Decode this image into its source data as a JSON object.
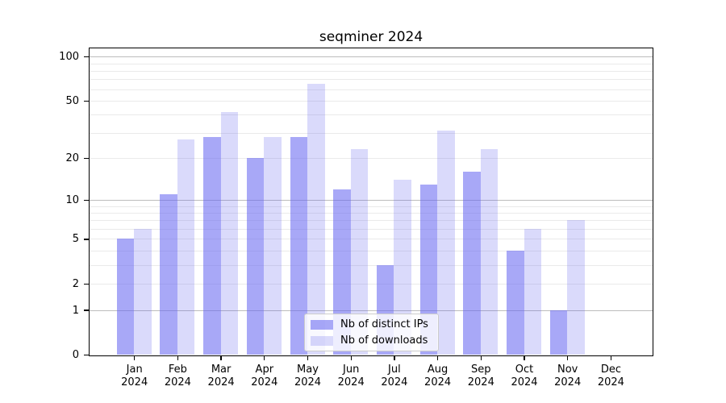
{
  "title": "seqminer 2024",
  "chart_data": {
    "type": "bar",
    "title": "seqminer 2024",
    "categories": [
      "Jan",
      "Feb",
      "Mar",
      "Apr",
      "May",
      "Jun",
      "Jul",
      "Aug",
      "Sep",
      "Oct",
      "Nov",
      "Dec"
    ],
    "x_year_label": "2024",
    "series": [
      {
        "name": "Nb of distinct IPs",
        "color": "#A8A8F7",
        "base_rgb": "100,100,240",
        "alpha": 0.56,
        "values": [
          5,
          11,
          28,
          20,
          28,
          12,
          3,
          13,
          16,
          4,
          1,
          0
        ]
      },
      {
        "name": "Nb of downloads",
        "color": "#DADAFB",
        "base_rgb": "100,100,240",
        "alpha": 0.24,
        "values": [
          6,
          27,
          42,
          28,
          65,
          23,
          14,
          31,
          23,
          6,
          7,
          0
        ]
      }
    ],
    "yscale": "log1p",
    "yticks": [
      0,
      1,
      2,
      5,
      10,
      20,
      50,
      100
    ],
    "ylim": [
      0,
      114
    ],
    "grid": "horizontal",
    "grid_minor_values": [
      2,
      3,
      4,
      5,
      6,
      7,
      8,
      9,
      20,
      30,
      40,
      50,
      60,
      70,
      80,
      90
    ],
    "grid_major_values": [
      1,
      10,
      100
    ],
    "legend_position": "lower center"
  },
  "colors": {
    "minor_grid": "#eaeaea",
    "major_grid": "#bdbdbd",
    "spine": "#000000",
    "text": "#000000",
    "legend_border": "#cccccc"
  }
}
